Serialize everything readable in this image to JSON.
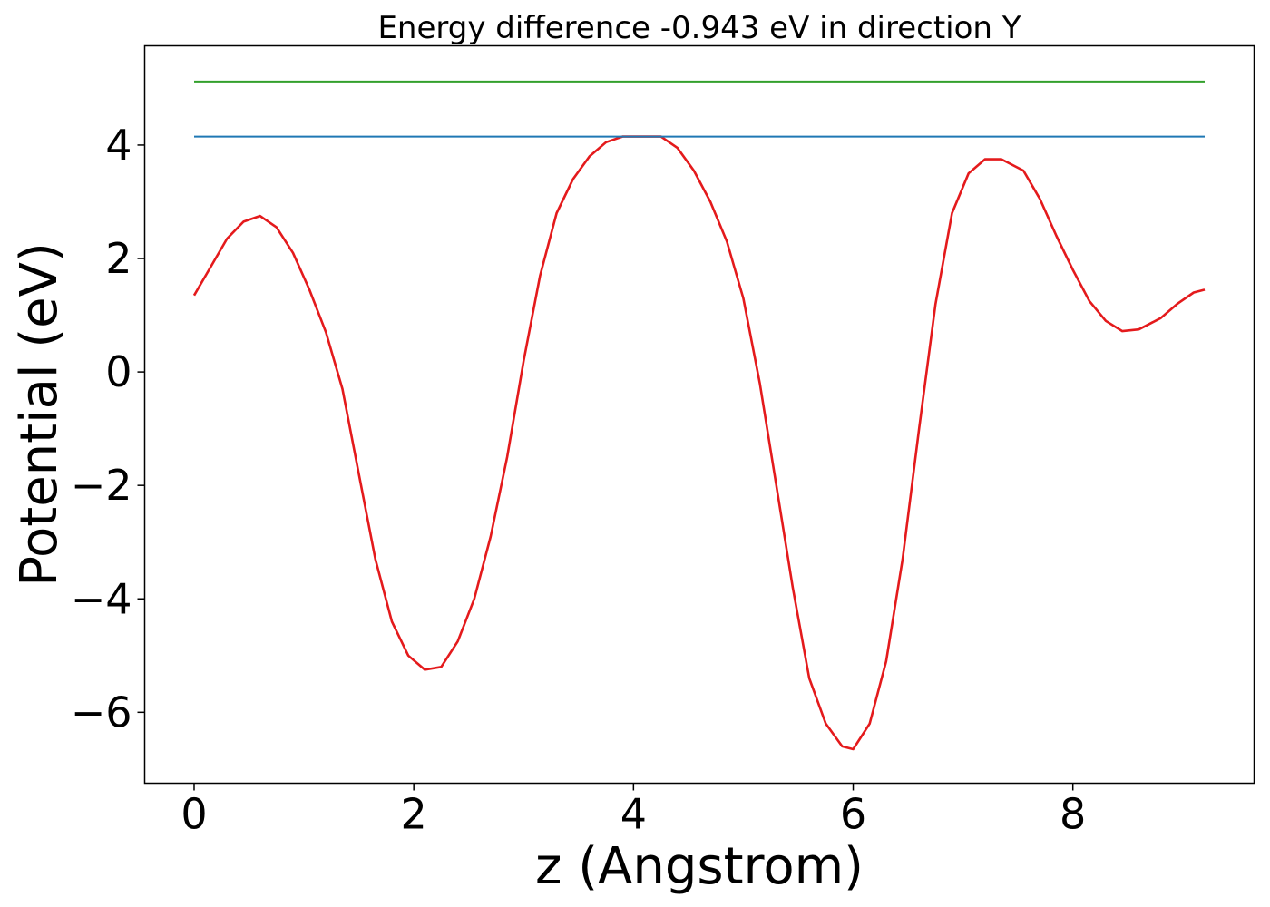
{
  "chart_data": {
    "type": "line",
    "title": "Energy difference -0.943 eV in direction Y",
    "xlabel": "z (Angstrom)",
    "ylabel": "Potential (eV)",
    "xlim": [
      -0.45,
      9.65
    ],
    "ylim": [
      -7.25,
      5.75
    ],
    "x_ticks": [
      0,
      2,
      4,
      6,
      8
    ],
    "y_ticks": [
      -6,
      -4,
      -2,
      0,
      2,
      4
    ],
    "x_tick_labels": [
      "0",
      "2",
      "4",
      "6",
      "8"
    ],
    "y_tick_labels": [
      "−6",
      "−4",
      "−2",
      "0",
      "2",
      "4"
    ],
    "grid": false,
    "series": [
      {
        "color": "#e41a1c",
        "x": [
          0,
          0.15,
          0.3,
          0.45,
          0.6,
          0.75,
          0.9,
          1.05,
          1.2,
          1.35,
          1.5,
          1.65,
          1.8,
          1.95,
          2.1,
          2.25,
          2.4,
          2.55,
          2.7,
          2.85,
          3.0,
          3.15,
          3.3,
          3.45,
          3.6,
          3.75,
          3.9,
          4.05,
          4.25,
          4.4,
          4.55,
          4.7,
          4.85,
          5.0,
          5.15,
          5.3,
          5.45,
          5.6,
          5.75,
          5.9,
          6.0,
          6.15,
          6.3,
          6.45,
          6.6,
          6.75,
          6.9,
          7.05,
          7.2,
          7.35,
          7.55,
          7.7,
          7.85,
          8.0,
          8.15,
          8.3,
          8.45,
          8.6,
          8.8,
          8.95,
          9.1,
          9.2
        ],
        "y": [
          1.35,
          1.85,
          2.35,
          2.65,
          2.75,
          2.55,
          2.1,
          1.45,
          0.7,
          -0.3,
          -1.8,
          -3.3,
          -4.4,
          -5.0,
          -5.25,
          -5.2,
          -4.75,
          -4.0,
          -2.9,
          -1.5,
          0.2,
          1.7,
          2.8,
          3.4,
          3.8,
          4.05,
          4.15,
          4.15,
          4.15,
          3.95,
          3.55,
          3.0,
          2.3,
          1.3,
          -0.2,
          -2.0,
          -3.8,
          -5.4,
          -6.2,
          -6.6,
          -6.65,
          -6.2,
          -5.1,
          -3.3,
          -1.0,
          1.2,
          2.8,
          3.5,
          3.75,
          3.75,
          3.55,
          3.05,
          2.4,
          1.8,
          1.25,
          0.9,
          0.72,
          0.75,
          0.95,
          1.2,
          1.4,
          1.45
        ]
      },
      {
        "color": "#1f78b4",
        "x": [
          0,
          9.2
        ],
        "y": [
          4.15,
          4.15
        ]
      },
      {
        "color": "#33a02c",
        "x": [
          0,
          9.2
        ],
        "y": [
          5.12,
          5.12
        ]
      }
    ]
  }
}
